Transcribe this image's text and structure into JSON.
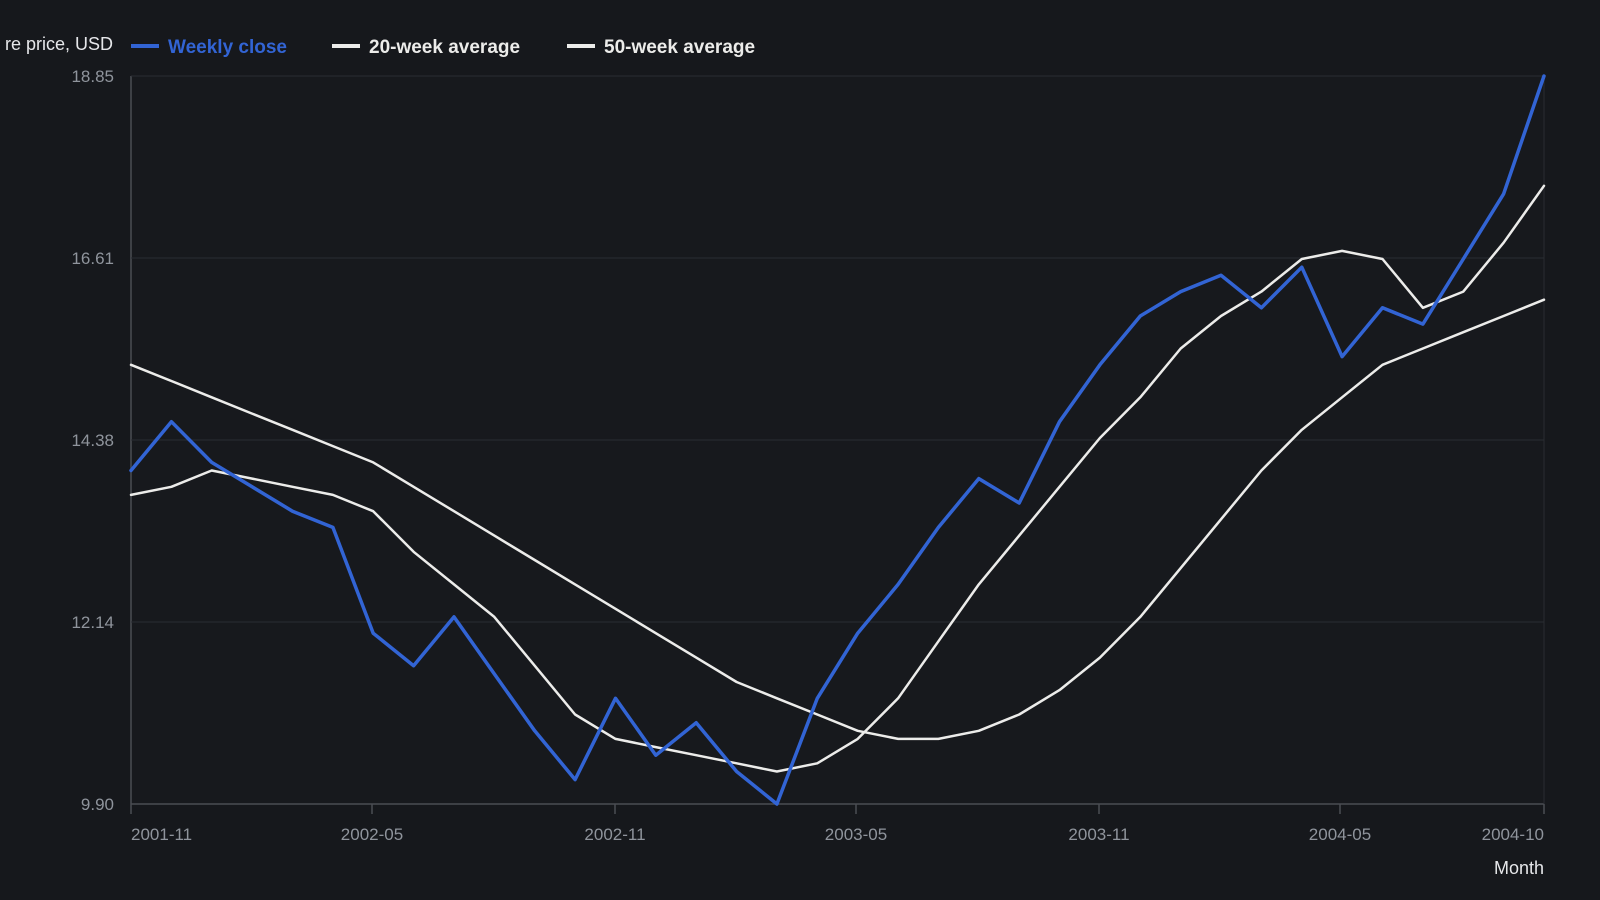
{
  "chart_data": {
    "type": "line",
    "title": "",
    "ylabel": "re price, USD",
    "xlabel": "Month",
    "ylim": [
      9.9,
      18.85
    ],
    "yticks": [
      "9.90",
      "12.14",
      "14.38",
      "16.61",
      "18.85"
    ],
    "x_start": "2001-11",
    "x_end": "2004-10",
    "x_tick_labels": [
      "2001-11",
      "2002-05",
      "2002-11",
      "2003-05",
      "2003-11",
      "2004-05",
      "2004-10"
    ],
    "grid": true,
    "legend_position": "top-left",
    "series": [
      {
        "name": "Weekly close",
        "color": "#3264d4",
        "values": [
          14.0,
          14.6,
          14.1,
          13.8,
          13.5,
          13.3,
          12.0,
          11.6,
          12.2,
          11.5,
          10.8,
          10.2,
          11.2,
          10.5,
          10.9,
          10.3,
          9.9,
          11.2,
          12.0,
          12.6,
          13.3,
          13.9,
          13.6,
          14.6,
          15.3,
          15.9,
          16.2,
          16.4,
          16.0,
          16.5,
          15.4,
          16.0,
          15.8,
          16.6,
          17.4,
          18.85
        ]
      },
      {
        "name": "20-week average",
        "color": "#ececea",
        "values": [
          13.7,
          13.8,
          14.0,
          13.9,
          13.8,
          13.7,
          13.5,
          13.0,
          12.6,
          12.2,
          11.6,
          11.0,
          10.7,
          10.6,
          10.5,
          10.4,
          10.3,
          10.4,
          10.7,
          11.2,
          11.9,
          12.6,
          13.2,
          13.8,
          14.4,
          14.9,
          15.5,
          15.9,
          16.2,
          16.6,
          16.7,
          16.6,
          16.0,
          16.2,
          16.8,
          17.5
        ]
      },
      {
        "name": "50-week average",
        "color": "#ececea",
        "values": [
          15.3,
          15.1,
          14.9,
          14.7,
          14.5,
          14.3,
          14.1,
          13.8,
          13.5,
          13.2,
          12.9,
          12.6,
          12.3,
          12.0,
          11.7,
          11.4,
          11.2,
          11.0,
          10.8,
          10.7,
          10.7,
          10.8,
          11.0,
          11.3,
          11.7,
          12.2,
          12.8,
          13.4,
          14.0,
          14.5,
          14.9,
          15.3,
          15.5,
          15.7,
          15.9,
          16.1
        ]
      }
    ]
  }
}
